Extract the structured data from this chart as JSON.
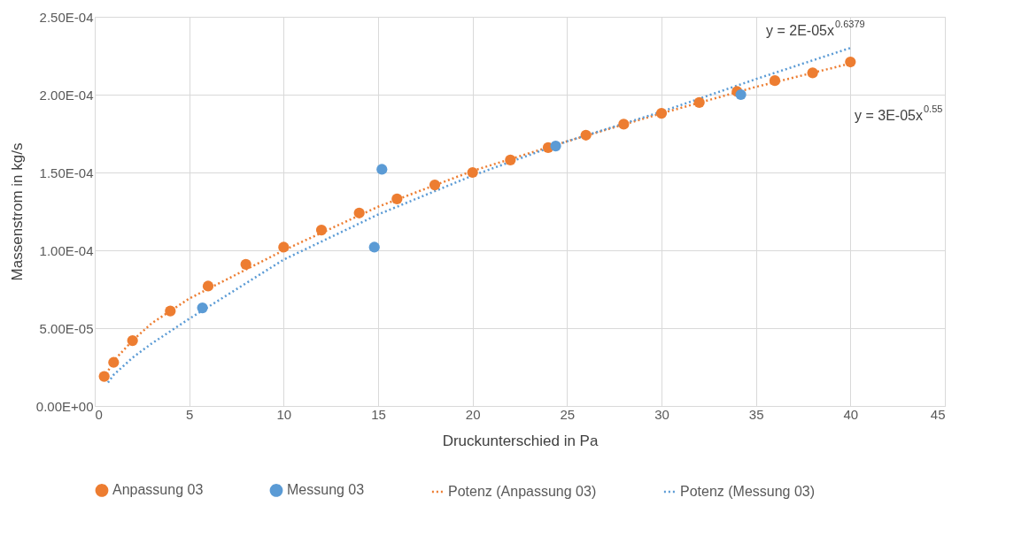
{
  "chart_data": {
    "type": "scatter",
    "xlabel": "Druckunterschied in Pa",
    "ylabel": "Massenstrom in kg/s",
    "xlim": [
      0,
      45
    ],
    "xticks": [
      0,
      5,
      10,
      15,
      20,
      25,
      30,
      35,
      40,
      45
    ],
    "ylim": [
      0,
      0.00025
    ],
    "yticks": [
      {
        "value": 0,
        "label": "0.00E+00"
      },
      {
        "value": 5e-05,
        "label": "5.00E-05"
      },
      {
        "value": 0.0001,
        "label": "1.00E-04"
      },
      {
        "value": 0.00015,
        "label": "1.50E-04"
      },
      {
        "value": 0.0002,
        "label": "2.00E-04"
      },
      {
        "value": 0.00025,
        "label": "2.50E-04"
      }
    ],
    "grid": true,
    "legend": "bottom",
    "series": [
      {
        "name": "Anpassung 03",
        "marker": "circle",
        "color": "#ed7d31",
        "x": [
          0.5,
          1,
          2,
          4,
          6,
          8,
          10,
          12,
          14,
          16,
          18,
          20,
          22,
          24,
          26,
          28,
          30,
          32,
          34,
          36,
          38,
          40
        ],
        "values": [
          1.9e-05,
          2.8e-05,
          4.2e-05,
          6.1e-05,
          7.7e-05,
          9.1e-05,
          0.000102,
          0.000113,
          0.000124,
          0.000133,
          0.000142,
          0.00015,
          0.000158,
          0.000166,
          0.000174,
          0.000181,
          0.000188,
          0.000195,
          0.000202,
          0.000209,
          0.000214,
          0.000221
        ]
      },
      {
        "name": "Messung 03",
        "marker": "circle",
        "color": "#5b9bd5",
        "x": [
          5.7,
          14.8,
          15.2,
          24.4,
          34.2
        ],
        "values": [
          6.3e-05,
          0.000102,
          0.000152,
          0.000167,
          0.0002
        ]
      },
      {
        "name": "Potenz (Anpassung 03)",
        "type": "line",
        "line_style": "dotted",
        "color": "#ed7d31",
        "x": [
          0.5,
          1,
          2,
          3,
          5,
          10,
          15,
          20,
          25,
          30,
          35,
          40
        ],
        "values": [
          1.8e-05,
          2.9e-05,
          4.2e-05,
          5.3e-05,
          6.9e-05,
          0.0001,
          0.000128,
          0.000151,
          0.00017,
          0.000188,
          0.000205,
          0.00022
        ]
      },
      {
        "name": "Potenz (Messung 03)",
        "type": "line",
        "line_style": "dotted",
        "color": "#5b9bd5",
        "x": [
          0.7,
          1,
          2,
          3,
          5,
          10,
          15,
          20,
          25,
          30,
          35,
          40
        ],
        "values": [
          1.5e-05,
          2e-05,
          3.1e-05,
          4e-05,
          5.6e-05,
          9.4e-05,
          0.000123,
          0.000148,
          0.00017,
          0.000189,
          0.00021,
          0.00023
        ]
      }
    ],
    "annotations": [
      "y = 2E-05x$^{0.6379}$",
      "y = 3E-05x$^{0.55}$"
    ]
  }
}
